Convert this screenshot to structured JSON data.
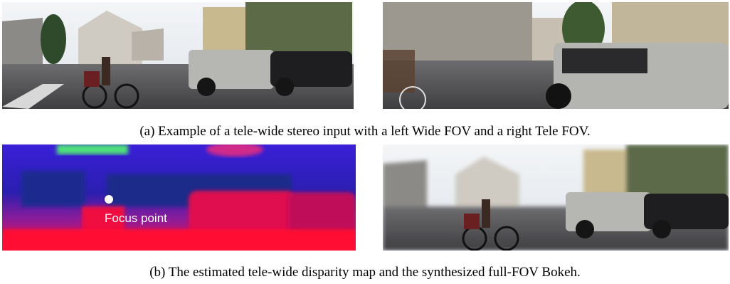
{
  "captions": {
    "a": "(a) Example of a tele-wide stereo input with a left Wide FOV and a right Tele FOV.",
    "b": "(b) The estimated tele-wide disparity map and the synthesized full-FOV Bokeh."
  },
  "annotations": {
    "focus_point": "Focus point"
  }
}
